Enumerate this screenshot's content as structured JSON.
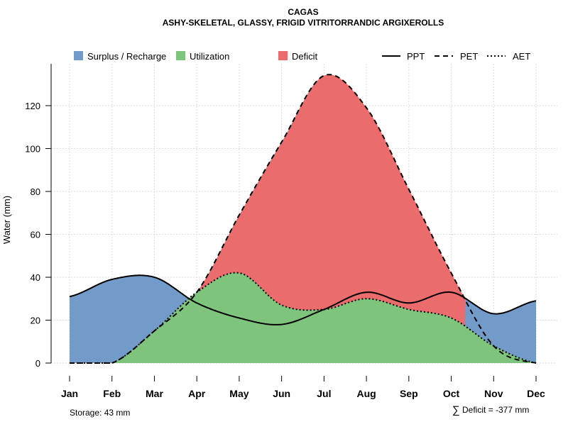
{
  "chart_data": {
    "type": "area",
    "title": "CAGAS",
    "subtitle": "ASHY-SKELETAL, GLASSY, FRIGID VITRITORRANDIC ARGIXEROLLS",
    "xlabel": "",
    "ylabel": "Water (mm)",
    "ylim": [
      0,
      138
    ],
    "yticks": [
      "0",
      "20",
      "40",
      "60",
      "80",
      "100",
      "120"
    ],
    "grid": true,
    "legend_position": "top",
    "categories": [
      "Jan",
      "Feb",
      "Mar",
      "Apr",
      "May",
      "Jun",
      "Jul",
      "Aug",
      "Sep",
      "Oct",
      "Nov",
      "Dec"
    ],
    "series": [
      {
        "name": "PPT",
        "style": "solid",
        "values": [
          31,
          39,
          40,
          28,
          21,
          18,
          25,
          33,
          28,
          33,
          23,
          29
        ]
      },
      {
        "name": "PET",
        "style": "dashed",
        "values": [
          0,
          0,
          15,
          33,
          69,
          103,
          134,
          119,
          81,
          42,
          8,
          0
        ]
      },
      {
        "name": "AET",
        "style": "dotted",
        "values": [
          0,
          0,
          15,
          33,
          42,
          27,
          25,
          30,
          25,
          21,
          8,
          0
        ]
      }
    ],
    "areas": [
      {
        "name": "Surplus / Recharge",
        "color": "#729BC9"
      },
      {
        "name": "Utilization",
        "color": "#7FC47C"
      },
      {
        "name": "Deficit",
        "color": "#EA6C6C"
      }
    ],
    "annotations": {
      "storage": "Storage: 43 mm",
      "deficit_symbol": "∑",
      "deficit": "Deficit = -377 mm"
    }
  }
}
